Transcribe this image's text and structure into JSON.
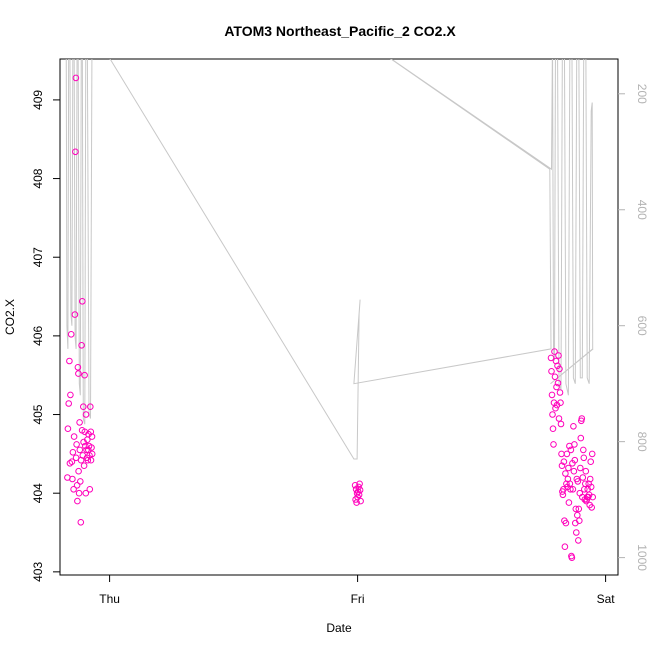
{
  "chart_data": {
    "type": "scatter",
    "title": "ATOM3 Northeast_Pacific_2 CO2.X",
    "xlabel": "Date",
    "ylabel": "CO2.X",
    "x_ticks": [
      "Thu",
      "Fri",
      "Sat"
    ],
    "x_range_days": [
      -0.2,
      2.05
    ],
    "y_ticks": [
      403,
      404,
      405,
      406,
      407,
      408,
      409
    ],
    "ylim": [
      402.96,
      409.52
    ],
    "y2_ticks": [
      200,
      400,
      600,
      800,
      1000
    ],
    "y2lim": [
      1030,
      140
    ],
    "y2_reversed": true,
    "grid": false,
    "colors": {
      "points": "#ff00bb",
      "depth_line": "#c8c8c8",
      "axis": "#000000",
      "right_axis": "#b3b3b3"
    },
    "series": [
      {
        "marker": "open-circle",
        "points": [
          [
            -0.17,
            404.2
          ],
          [
            -0.168,
            404.82
          ],
          [
            -0.165,
            405.14
          ],
          [
            -0.162,
            405.68
          ],
          [
            -0.16,
            404.38
          ],
          [
            -0.158,
            405.25
          ],
          [
            -0.155,
            406.02
          ],
          [
            -0.152,
            404.4
          ],
          [
            -0.15,
            404.18
          ],
          [
            -0.148,
            404.52
          ],
          [
            -0.145,
            404.05
          ],
          [
            -0.143,
            404.72
          ],
          [
            -0.14,
            406.27
          ],
          [
            -0.138,
            408.34
          ],
          [
            -0.136,
            409.28
          ],
          [
            -0.135,
            404.45
          ],
          [
            -0.133,
            404.62
          ],
          [
            -0.131,
            404.1
          ],
          [
            -0.13,
            403.9
          ],
          [
            -0.128,
            405.6
          ],
          [
            -0.126,
            405.52
          ],
          [
            -0.125,
            404.28
          ],
          [
            -0.123,
            404.0
          ],
          [
            -0.121,
            404.9
          ],
          [
            -0.12,
            404.55
          ],
          [
            -0.118,
            404.15
          ],
          [
            -0.116,
            403.63
          ],
          [
            -0.115,
            404.42
          ],
          [
            -0.113,
            405.88
          ],
          [
            -0.111,
            404.8
          ],
          [
            -0.11,
            406.44
          ],
          [
            -0.108,
            404.48
          ],
          [
            -0.106,
            405.1
          ],
          [
            -0.105,
            404.65
          ],
          [
            -0.103,
            404.35
          ],
          [
            -0.101,
            405.5
          ],
          [
            -0.1,
            404.78
          ],
          [
            -0.098,
            404.6
          ],
          [
            -0.096,
            404.0
          ],
          [
            -0.095,
            405.0
          ],
          [
            -0.093,
            404.55
          ],
          [
            -0.091,
            404.45
          ],
          [
            -0.09,
            404.68
          ],
          [
            -0.088,
            404.42
          ],
          [
            -0.086,
            404.55
          ],
          [
            -0.085,
            404.75
          ],
          [
            -0.083,
            404.6
          ],
          [
            -0.081,
            404.48
          ],
          [
            -0.08,
            404.05
          ],
          [
            -0.078,
            405.1
          ],
          [
            -0.076,
            404.78
          ],
          [
            -0.075,
            404.42
          ],
          [
            -0.073,
            404.58
          ],
          [
            -0.071,
            404.72
          ],
          [
            -0.07,
            404.5
          ],
          [
            0.99,
            404.1
          ],
          [
            0.992,
            403.92
          ],
          [
            0.994,
            404.05
          ],
          [
            0.996,
            403.88
          ],
          [
            0.998,
            404.0
          ],
          [
            1.0,
            403.95
          ],
          [
            1.002,
            404.02
          ],
          [
            1.004,
            404.08
          ],
          [
            1.006,
            403.98
          ],
          [
            1.008,
            404.12
          ],
          [
            1.01,
            404.04
          ],
          [
            1.012,
            403.9
          ],
          [
            1.78,
            405.72
          ],
          [
            1.782,
            405.55
          ],
          [
            1.784,
            405.25
          ],
          [
            1.786,
            405.0
          ],
          [
            1.788,
            404.82
          ],
          [
            1.79,
            404.62
          ],
          [
            1.792,
            405.15
          ],
          [
            1.794,
            405.8
          ],
          [
            1.796,
            405.48
          ],
          [
            1.798,
            405.08
          ],
          [
            1.8,
            405.68
          ],
          [
            1.802,
            405.35
          ],
          [
            1.804,
            405.12
          ],
          [
            1.806,
            405.62
          ],
          [
            1.808,
            405.4
          ],
          [
            1.81,
            405.75
          ],
          [
            1.812,
            404.95
          ],
          [
            1.814,
            405.58
          ],
          [
            1.816,
            405.28
          ],
          [
            1.818,
            405.15
          ],
          [
            1.82,
            404.88
          ],
          [
            1.822,
            404.5
          ],
          [
            1.824,
            404.35
          ],
          [
            1.826,
            404.02
          ],
          [
            1.828,
            403.98
          ],
          [
            1.83,
            404.05
          ],
          [
            1.832,
            404.4
          ],
          [
            1.834,
            403.65
          ],
          [
            1.836,
            403.32
          ],
          [
            1.838,
            404.25
          ],
          [
            1.84,
            403.62
          ],
          [
            1.842,
            404.12
          ],
          [
            1.844,
            404.5
          ],
          [
            1.846,
            404.08
          ],
          [
            1.848,
            404.18
          ],
          [
            1.85,
            404.32
          ],
          [
            1.852,
            403.88
          ],
          [
            1.854,
            404.6
          ],
          [
            1.856,
            404.12
          ],
          [
            1.858,
            404.05
          ],
          [
            1.86,
            404.55
          ],
          [
            1.862,
            403.2
          ],
          [
            1.864,
            403.18
          ],
          [
            1.866,
            404.38
          ],
          [
            1.868,
            404.05
          ],
          [
            1.87,
            404.85
          ],
          [
            1.872,
            404.28
          ],
          [
            1.874,
            404.62
          ],
          [
            1.876,
            404.42
          ],
          [
            1.878,
            403.62
          ],
          [
            1.88,
            403.8
          ],
          [
            1.882,
            403.5
          ],
          [
            1.884,
            404.18
          ],
          [
            1.886,
            403.72
          ],
          [
            1.888,
            404.15
          ],
          [
            1.89,
            403.4
          ],
          [
            1.892,
            403.8
          ],
          [
            1.894,
            403.65
          ],
          [
            1.896,
            404.0
          ],
          [
            1.898,
            404.32
          ],
          [
            1.9,
            404.7
          ],
          [
            1.902,
            404.92
          ],
          [
            1.904,
            404.95
          ],
          [
            1.906,
            403.95
          ],
          [
            1.908,
            404.2
          ],
          [
            1.91,
            404.55
          ],
          [
            1.912,
            404.45
          ],
          [
            1.914,
            404.05
          ],
          [
            1.916,
            403.92
          ],
          [
            1.918,
            404.12
          ],
          [
            1.92,
            404.28
          ],
          [
            1.922,
            403.9
          ],
          [
            1.924,
            403.92
          ],
          [
            1.926,
            403.95
          ],
          [
            1.928,
            404.05
          ],
          [
            1.93,
            403.95
          ],
          [
            1.932,
            404.12
          ],
          [
            1.934,
            403.98
          ],
          [
            1.936,
            403.85
          ],
          [
            1.938,
            404.18
          ],
          [
            1.94,
            404.4
          ],
          [
            1.942,
            404.08
          ],
          [
            1.944,
            403.82
          ],
          [
            1.946,
            404.5
          ],
          [
            1.948,
            403.95
          ]
        ]
      },
      {
        "axis": "right",
        "style": "line",
        "points": [
          [
            -0.175,
            100
          ],
          [
            -0.172,
            600
          ],
          [
            -0.168,
            640
          ],
          [
            -0.165,
            100
          ],
          [
            -0.16,
            100
          ],
          [
            -0.156,
            580
          ],
          [
            -0.152,
            600
          ],
          [
            -0.148,
            100
          ],
          [
            -0.143,
            100
          ],
          [
            -0.139,
            620
          ],
          [
            -0.135,
            640
          ],
          [
            -0.131,
            100
          ],
          [
            -0.127,
            100
          ],
          [
            -0.122,
            700
          ],
          [
            -0.118,
            720
          ],
          [
            -0.114,
            100
          ],
          [
            -0.11,
            100
          ],
          [
            -0.106,
            760
          ],
          [
            -0.1,
            770
          ],
          [
            -0.096,
            100
          ],
          [
            -0.09,
            100
          ],
          [
            -0.083,
            750
          ],
          [
            -0.077,
            760
          ],
          [
            -0.071,
            100
          ],
          [
            -0.055,
            100
          ],
          [
            0.985,
            830
          ],
          [
            0.998,
            830
          ],
          [
            1.006,
            580
          ],
          [
            1.01,
            555
          ],
          [
            0.985,
            700
          ],
          [
            1.78,
            640
          ],
          [
            1.775,
            330
          ],
          [
            1.0,
            100
          ],
          [
            1.782,
            330
          ],
          [
            1.786,
            100
          ],
          [
            1.79,
            640
          ],
          [
            1.794,
            660
          ],
          [
            1.798,
            100
          ],
          [
            1.806,
            100
          ],
          [
            1.812,
            700
          ],
          [
            1.82,
            710
          ],
          [
            1.826,
            100
          ],
          [
            1.834,
            100
          ],
          [
            1.84,
            700
          ],
          [
            1.85,
            720
          ],
          [
            1.856,
            100
          ],
          [
            1.864,
            100
          ],
          [
            1.87,
            690
          ],
          [
            1.878,
            700
          ],
          [
            1.884,
            100
          ],
          [
            1.892,
            100
          ],
          [
            1.898,
            690
          ],
          [
            1.906,
            690
          ],
          [
            1.912,
            100
          ],
          [
            1.92,
            100
          ],
          [
            1.926,
            690
          ],
          [
            1.934,
            700
          ],
          [
            1.942,
            230
          ],
          [
            1.946,
            215
          ],
          [
            1.948,
            640
          ],
          [
            1.778,
            700
          ],
          [
            1.95,
            640
          ]
        ]
      }
    ]
  }
}
